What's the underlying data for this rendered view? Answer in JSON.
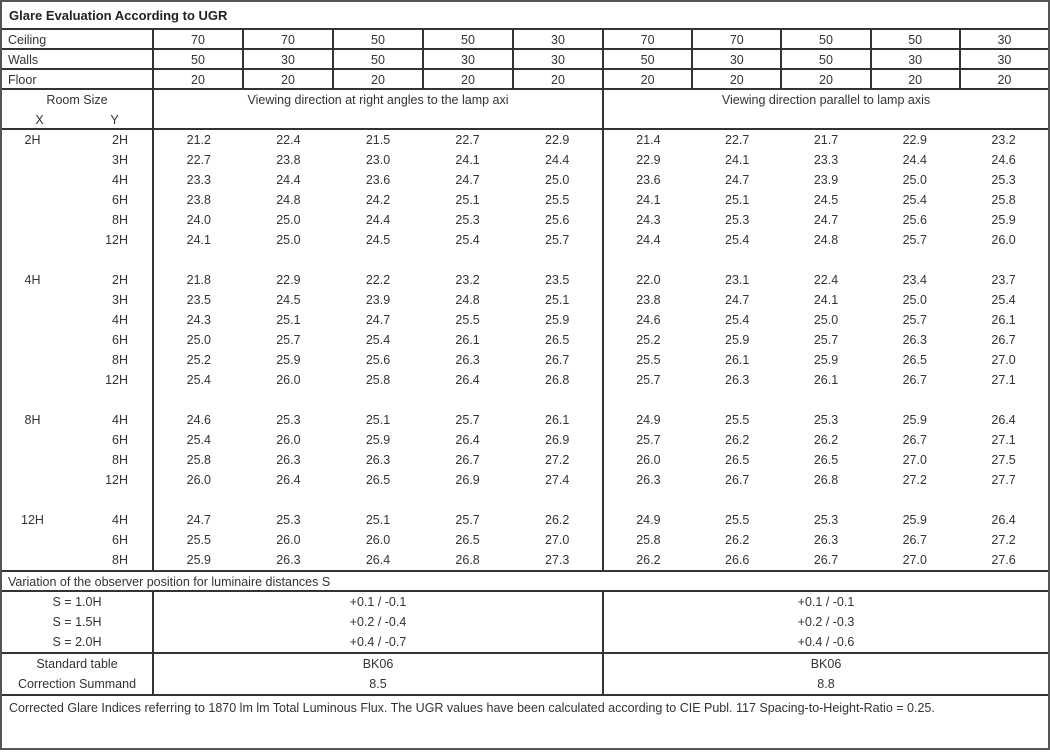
{
  "title": "Glare Evaluation According to UGR",
  "reflectances": [
    {
      "label": "Ceiling",
      "values": [
        "70",
        "70",
        "50",
        "50",
        "30",
        "70",
        "70",
        "50",
        "50",
        "30"
      ]
    },
    {
      "label": "Walls",
      "values": [
        "50",
        "30",
        "50",
        "30",
        "30",
        "50",
        "30",
        "50",
        "30",
        "30"
      ]
    },
    {
      "label": "Floor",
      "values": [
        "20",
        "20",
        "20",
        "20",
        "20",
        "20",
        "20",
        "20",
        "20",
        "20"
      ]
    }
  ],
  "header": {
    "room_size": "Room Size",
    "x": "X",
    "y": "Y",
    "dir_right": "Viewing direction at right angles to the lamp axi",
    "dir_parallel": "Viewing direction parallel to lamp axis"
  },
  "groups": [
    {
      "x": "2H",
      "rows": [
        {
          "y": "2H",
          "v": [
            "21.2",
            "22.4",
            "21.5",
            "22.7",
            "22.9",
            "21.4",
            "22.7",
            "21.7",
            "22.9",
            "23.2"
          ]
        },
        {
          "y": "3H",
          "v": [
            "22.7",
            "23.8",
            "23.0",
            "24.1",
            "24.4",
            "22.9",
            "24.1",
            "23.3",
            "24.4",
            "24.6"
          ]
        },
        {
          "y": "4H",
          "v": [
            "23.3",
            "24.4",
            "23.6",
            "24.7",
            "25.0",
            "23.6",
            "24.7",
            "23.9",
            "25.0",
            "25.3"
          ]
        },
        {
          "y": "6H",
          "v": [
            "23.8",
            "24.8",
            "24.2",
            "25.1",
            "25.5",
            "24.1",
            "25.1",
            "24.5",
            "25.4",
            "25.8"
          ]
        },
        {
          "y": "8H",
          "v": [
            "24.0",
            "25.0",
            "24.4",
            "25.3",
            "25.6",
            "24.3",
            "25.3",
            "24.7",
            "25.6",
            "25.9"
          ]
        },
        {
          "y": "12H",
          "v": [
            "24.1",
            "25.0",
            "24.5",
            "25.4",
            "25.7",
            "24.4",
            "25.4",
            "24.8",
            "25.7",
            "26.0"
          ]
        }
      ]
    },
    {
      "x": "4H",
      "rows": [
        {
          "y": "2H",
          "v": [
            "21.8",
            "22.9",
            "22.2",
            "23.2",
            "23.5",
            "22.0",
            "23.1",
            "22.4",
            "23.4",
            "23.7"
          ]
        },
        {
          "y": "3H",
          "v": [
            "23.5",
            "24.5",
            "23.9",
            "24.8",
            "25.1",
            "23.8",
            "24.7",
            "24.1",
            "25.0",
            "25.4"
          ]
        },
        {
          "y": "4H",
          "v": [
            "24.3",
            "25.1",
            "24.7",
            "25.5",
            "25.9",
            "24.6",
            "25.4",
            "25.0",
            "25.7",
            "26.1"
          ]
        },
        {
          "y": "6H",
          "v": [
            "25.0",
            "25.7",
            "25.4",
            "26.1",
            "26.5",
            "25.2",
            "25.9",
            "25.7",
            "26.3",
            "26.7"
          ]
        },
        {
          "y": "8H",
          "v": [
            "25.2",
            "25.9",
            "25.6",
            "26.3",
            "26.7",
            "25.5",
            "26.1",
            "25.9",
            "26.5",
            "27.0"
          ]
        },
        {
          "y": "12H",
          "v": [
            "25.4",
            "26.0",
            "25.8",
            "26.4",
            "26.8",
            "25.7",
            "26.3",
            "26.1",
            "26.7",
            "27.1"
          ]
        }
      ]
    },
    {
      "x": "8H",
      "rows": [
        {
          "y": "4H",
          "v": [
            "24.6",
            "25.3",
            "25.1",
            "25.7",
            "26.1",
            "24.9",
            "25.5",
            "25.3",
            "25.9",
            "26.4"
          ]
        },
        {
          "y": "6H",
          "v": [
            "25.4",
            "26.0",
            "25.9",
            "26.4",
            "26.9",
            "25.7",
            "26.2",
            "26.2",
            "26.7",
            "27.1"
          ]
        },
        {
          "y": "8H",
          "v": [
            "25.8",
            "26.3",
            "26.3",
            "26.7",
            "27.2",
            "26.0",
            "26.5",
            "26.5",
            "27.0",
            "27.5"
          ]
        },
        {
          "y": "12H",
          "v": [
            "26.0",
            "26.4",
            "26.5",
            "26.9",
            "27.4",
            "26.3",
            "26.7",
            "26.8",
            "27.2",
            "27.7"
          ]
        }
      ]
    },
    {
      "x": "12H",
      "rows": [
        {
          "y": "4H",
          "v": [
            "24.7",
            "25.3",
            "25.1",
            "25.7",
            "26.2",
            "24.9",
            "25.5",
            "25.3",
            "25.9",
            "26.4"
          ]
        },
        {
          "y": "6H",
          "v": [
            "25.5",
            "26.0",
            "26.0",
            "26.5",
            "27.0",
            "25.8",
            "26.2",
            "26.3",
            "26.7",
            "27.2"
          ]
        },
        {
          "y": "8H",
          "v": [
            "25.9",
            "26.3",
            "26.4",
            "26.8",
            "27.3",
            "26.2",
            "26.6",
            "26.7",
            "27.0",
            "27.6"
          ]
        }
      ]
    }
  ],
  "variation": {
    "title": "Variation of the observer position for luminaire distances S",
    "rows": [
      {
        "label": "S = 1.0H",
        "right": "+0.1 / -0.1",
        "parallel": "+0.1 / -0.1"
      },
      {
        "label": "S = 1.5H",
        "right": "+0.2 / -0.4",
        "parallel": "+0.2 / -0.3"
      },
      {
        "label": "S = 2.0H",
        "right": "+0.4 / -0.7",
        "parallel": "+0.4 / -0.6"
      }
    ]
  },
  "standard": {
    "label": "Standard table",
    "right": "BK06",
    "parallel": "BK06"
  },
  "correction": {
    "label": "Correction Summand",
    "right": "8.5",
    "parallel": "8.8"
  },
  "footnote": "Corrected Glare Indices referring to 1870 lm lm Total Luminous Flux. The UGR values have been calculated according to CIE Publ. 117    Spacing-to-Height-Ratio = 0.25."
}
